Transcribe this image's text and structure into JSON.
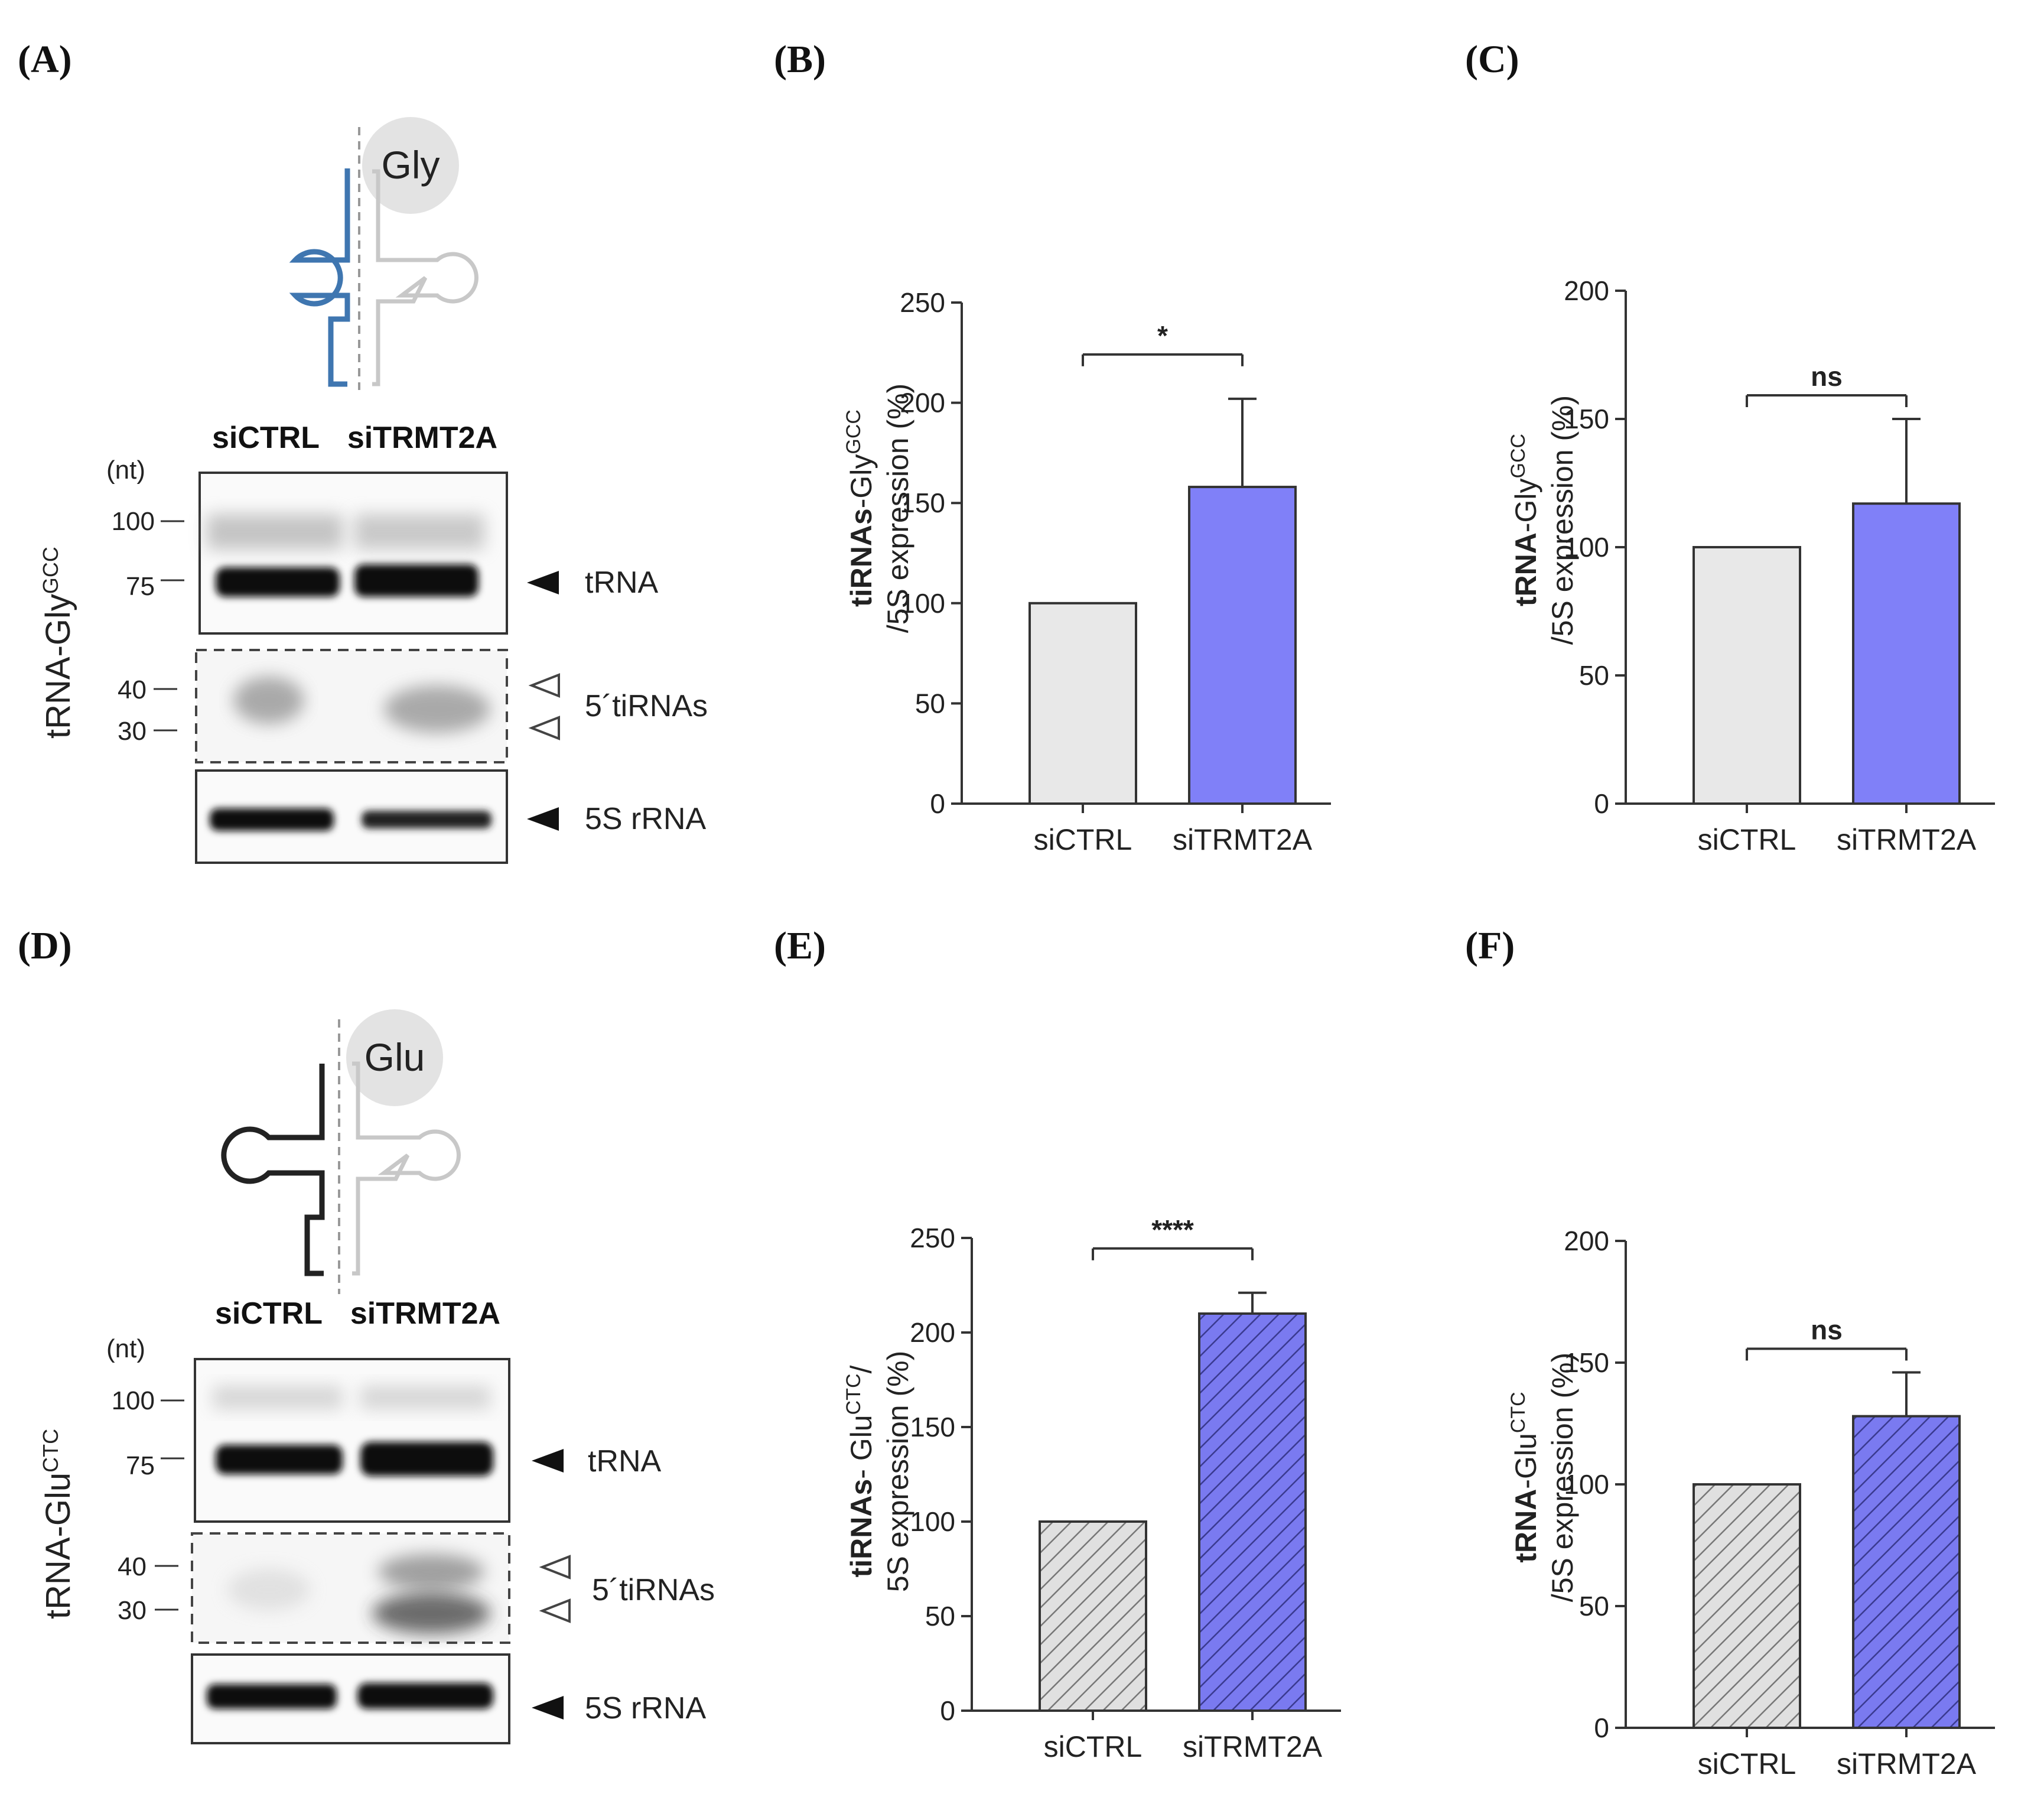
{
  "panel_labels": [
    "(A)",
    "(B)",
    "(C)",
    "(D)",
    "(E)",
    "(F)"
  ],
  "blots": [
    {
      "amino_acid": "Gly",
      "side_label": "tRNA-Gly",
      "side_sup": "GCC",
      "lanes": [
        "siCTRL",
        "siTRMT2A"
      ],
      "nt_unit": "(nt)",
      "markers": [
        "100",
        "75",
        "40",
        "30"
      ],
      "bands": [
        "tRNA",
        "5´tiRNAs",
        "5S rRNA"
      ],
      "strand_color": "#3f76b0"
    },
    {
      "amino_acid": "Glu",
      "side_label": "tRNA-Glu",
      "side_sup": "CTC",
      "lanes": [
        "siCTRL",
        "siTRMT2A"
      ],
      "nt_unit": "(nt)",
      "markers": [
        "100",
        "75",
        "40",
        "30"
      ],
      "bands": [
        "tRNA",
        "5´tiRNAs",
        "5S rRNA"
      ],
      "strand_color": "#222222"
    }
  ],
  "chart_data": [
    {
      "panel": "(B)",
      "type": "bar",
      "categories": [
        "siCTRL",
        "siTRMT2A"
      ],
      "values": [
        100,
        158
      ],
      "errors": [
        0,
        44
      ],
      "ylim": [
        0,
        250
      ],
      "yticks": [
        0,
        50,
        100,
        150,
        200,
        250
      ],
      "ylabel_bold": "tiRNAs",
      "ylabel_rest": "-Gly",
      "ylabel_sup": "GCC",
      "ylabel_line2": "/5S expression (%)",
      "significance": "*",
      "colors": [
        "#e8e8e8",
        "#8080f8"
      ],
      "hatched": false
    },
    {
      "panel": "(C)",
      "type": "bar",
      "categories": [
        "siCTRL",
        "siTRMT2A"
      ],
      "values": [
        100,
        117
      ],
      "errors": [
        0,
        33
      ],
      "ylim": [
        0,
        200
      ],
      "yticks": [
        0,
        50,
        100,
        150,
        200
      ],
      "ylabel_bold": "tRNA",
      "ylabel_rest": "-Gly",
      "ylabel_sup": "GCC",
      "ylabel_line2": "/5S expression (%)",
      "significance": "ns",
      "colors": [
        "#e8e8e8",
        "#8080f8"
      ],
      "hatched": false
    },
    {
      "panel": "(E)",
      "type": "bar",
      "categories": [
        "siCTRL",
        "siTRMT2A"
      ],
      "values": [
        100,
        210
      ],
      "errors": [
        0,
        11
      ],
      "ylim": [
        0,
        250
      ],
      "yticks": [
        0,
        50,
        100,
        150,
        200,
        250
      ],
      "ylabel_bold": "tiRNAs",
      "ylabel_rest": "- Glu",
      "ylabel_sup": "CTC",
      "ylabel_after": "/",
      "ylabel_line2": "5S expression (%)",
      "significance": "****",
      "colors": [
        "#e0e0e0",
        "#7a7af0"
      ],
      "hatched": true
    },
    {
      "panel": "(F)",
      "type": "bar",
      "categories": [
        "siCTRL",
        "siTRMT2A"
      ],
      "values": [
        100,
        128
      ],
      "errors": [
        0,
        18
      ],
      "ylim": [
        0,
        200
      ],
      "yticks": [
        0,
        50,
        100,
        150,
        200
      ],
      "ylabel_bold": "tRNA",
      "ylabel_rest": "-Glu",
      "ylabel_sup": "CTC",
      "ylabel_line2": "/5S expression (%)",
      "significance": "ns",
      "colors": [
        "#e0e0e0",
        "#7a7af0"
      ],
      "hatched": true
    }
  ]
}
